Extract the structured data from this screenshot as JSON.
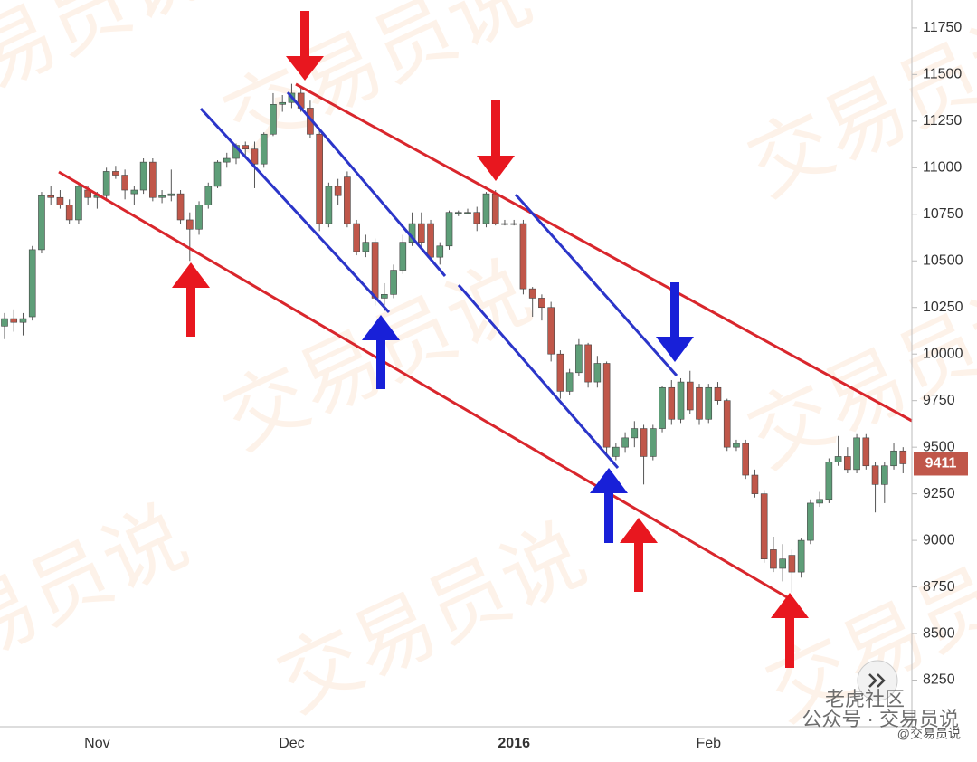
{
  "chart_data": {
    "type": "candlestick",
    "categories": [
      null,
      null,
      null,
      null,
      null,
      null,
      null,
      null,
      null,
      null,
      "Nov",
      null,
      null,
      null,
      null,
      null,
      null,
      null,
      null,
      null,
      null,
      null,
      null,
      null,
      null,
      null,
      null,
      null,
      null,
      null,
      null,
      "Dec",
      null,
      null,
      null,
      null,
      null,
      null,
      null,
      null,
      null,
      null,
      null,
      null,
      null,
      null,
      null,
      null,
      null,
      null,
      null,
      null,
      null,
      null,
      null,
      "2016",
      null,
      null,
      null,
      null,
      null,
      null,
      null,
      null,
      null,
      null,
      null,
      null,
      null,
      null,
      null,
      null,
      null,
      null,
      null,
      null,
      "Feb",
      null,
      null,
      null,
      null,
      null,
      null,
      null,
      null,
      null,
      null,
      null,
      null,
      null,
      null,
      null,
      null,
      null,
      null,
      null,
      null,
      null
    ],
    "open": [
      10150,
      10190,
      10170,
      10200,
      10560,
      10850,
      10840,
      10800,
      10720,
      10880,
      10840,
      10850,
      10980,
      10960,
      10860,
      10880,
      11030,
      10840,
      10850,
      10860,
      10720,
      10670,
      10800,
      10900,
      11030,
      11050,
      11120,
      11100,
      11020,
      11180,
      11340,
      11350,
      11400,
      11320,
      11180,
      10700,
      10900,
      10950,
      10700,
      10550,
      10600,
      10300,
      10320,
      10450,
      10600,
      10700,
      10700,
      10520,
      10580,
      10760,
      10760,
      10760,
      10700,
      10860,
      10700,
      10700,
      10700,
      10350,
      10300,
      10250,
      10000,
      9800,
      9900,
      10050,
      9850,
      9950,
      9450,
      9500,
      9550,
      9600,
      9450,
      9600,
      9820,
      9650,
      9850,
      9820,
      9650,
      9820,
      9750,
      9500,
      9520,
      9350,
      9250,
      8950,
      8850,
      8920,
      8830,
      9000,
      9200,
      9220,
      9420,
      9450,
      9380,
      9550,
      9400,
      9300,
      9400,
      9480
    ],
    "high": [
      10220,
      10240,
      10220,
      10580,
      10870,
      10900,
      10880,
      10830,
      10920,
      10900,
      10870,
      11000,
      11010,
      10990,
      10900,
      11050,
      11050,
      10880,
      10990,
      10880,
      10760,
      10820,
      10920,
      11040,
      11080,
      11130,
      11140,
      11140,
      11190,
      11400,
      11390,
      11450,
      11440,
      11360,
      11200,
      10920,
      10940,
      10980,
      10720,
      10640,
      10620,
      10380,
      10480,
      10640,
      10760,
      10760,
      10720,
      10600,
      10770,
      10770,
      10780,
      10790,
      10870,
      10880,
      10720,
      10720,
      10720,
      10360,
      10320,
      10280,
      10020,
      9920,
      10080,
      10060,
      9990,
      9960,
      9520,
      9580,
      9640,
      9620,
      9620,
      9830,
      9860,
      9870,
      9910,
      9840,
      9840,
      9850,
      9760,
      9540,
      9540,
      9380,
      9270,
      9020,
      8980,
      8950,
      9010,
      9220,
      9260,
      9440,
      9560,
      9500,
      9570,
      9570,
      9420,
      9420,
      9520,
      9500
    ],
    "low": [
      10080,
      10120,
      10100,
      10180,
      10540,
      10800,
      10780,
      10700,
      10700,
      10800,
      10780,
      10820,
      10940,
      10830,
      10800,
      10860,
      10820,
      10810,
      10820,
      10700,
      10500,
      10640,
      10780,
      10890,
      11000,
      11020,
      11060,
      10890,
      11000,
      11170,
      11300,
      11320,
      11300,
      11160,
      10660,
      10680,
      10800,
      10680,
      10530,
      10520,
      10260,
      10230,
      10300,
      10430,
      10580,
      10580,
      10500,
      10480,
      10560,
      10740,
      10750,
      10660,
      10680,
      10690,
      10690,
      10690,
      10320,
      10200,
      10180,
      9960,
      9760,
      9780,
      9880,
      9820,
      9820,
      9460,
      9430,
      9470,
      9500,
      9300,
      9430,
      9580,
      9620,
      9630,
      9680,
      9620,
      9630,
      9730,
      9480,
      9480,
      9330,
      9230,
      8880,
      8830,
      8780,
      8720,
      8800,
      8980,
      9180,
      9200,
      9400,
      9360,
      9360,
      9380,
      9150,
      9200,
      9380,
      9360
    ],
    "close": [
      10190,
      10170,
      10190,
      10560,
      10850,
      10840,
      10800,
      10720,
      10900,
      10840,
      10850,
      10980,
      10960,
      10880,
      10880,
      11030,
      10840,
      10850,
      10860,
      10720,
      10670,
      10800,
      10900,
      11030,
      11050,
      11120,
      11100,
      11020,
      11180,
      11340,
      11350,
      11400,
      11320,
      11180,
      10700,
      10900,
      10850,
      10700,
      10550,
      10600,
      10300,
      10320,
      10450,
      10600,
      10700,
      10600,
      10520,
      10580,
      10760,
      10760,
      10760,
      10700,
      10860,
      10700,
      10700,
      10700,
      10350,
      10300,
      10250,
      10000,
      9800,
      9900,
      10050,
      9850,
      9950,
      9500,
      9500,
      9550,
      9600,
      9450,
      9600,
      9820,
      9650,
      9850,
      9700,
      9650,
      9820,
      9750,
      9500,
      9520,
      9350,
      9250,
      8900,
      8850,
      8900,
      8830,
      9000,
      9200,
      9220,
      9420,
      9450,
      9380,
      9550,
      9400,
      9300,
      9400,
      9480,
      9411
    ],
    "up_color": "#5e9e78",
    "down_color": "#c0574a",
    "last_price": 9411,
    "ylim": [
      8000,
      11900
    ],
    "yticks": [
      8250,
      8500,
      8750,
      9000,
      9250,
      9500,
      9750,
      10000,
      10250,
      10500,
      10750,
      11000,
      11250,
      11500,
      11750
    ]
  },
  "watermarks": {
    "big": "交易员说",
    "corner": "老虎社区",
    "account": "公众号 · 交易员说",
    "handle": "@交易员说"
  }
}
